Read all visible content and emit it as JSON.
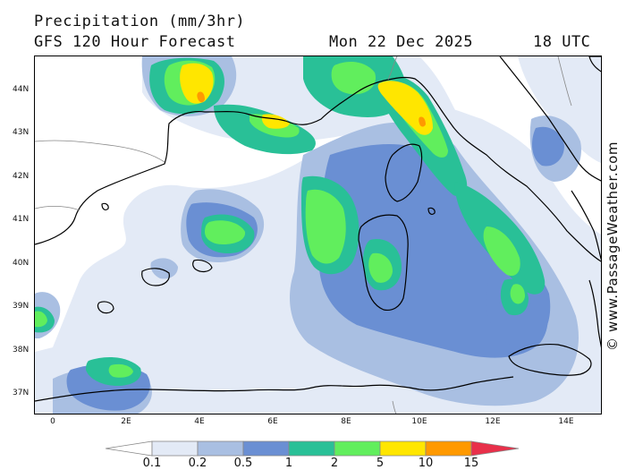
{
  "header": {
    "title": "Precipitation (mm/3hr)",
    "model": "GFS 120 Hour Forecast",
    "date": "Mon 22 Dec 2025",
    "time": "18 UTC"
  },
  "credit": "© www.PassageWeather.com",
  "map": {
    "lat_labels": [
      "44N",
      "43N",
      "42N",
      "41N",
      "40N",
      "39N",
      "38N",
      "37N"
    ],
    "lon_labels": [
      "0",
      "2E",
      "4E",
      "6E",
      "8E",
      "10E",
      "12E",
      "14E"
    ],
    "land_color": "#ffffff",
    "coast_color": "#000000",
    "border_color": "#888888"
  },
  "legend": {
    "ticks": [
      "0.1",
      "0.2",
      "0.5",
      "1",
      "2",
      "5",
      "10",
      "15"
    ],
    "colors": [
      "#ffffff",
      "#e3eaf6",
      "#a9bfe2",
      "#6a8fd3",
      "#29c097",
      "#61ee5d",
      "#ffe600",
      "#ff9900",
      "#e8304a"
    ]
  }
}
